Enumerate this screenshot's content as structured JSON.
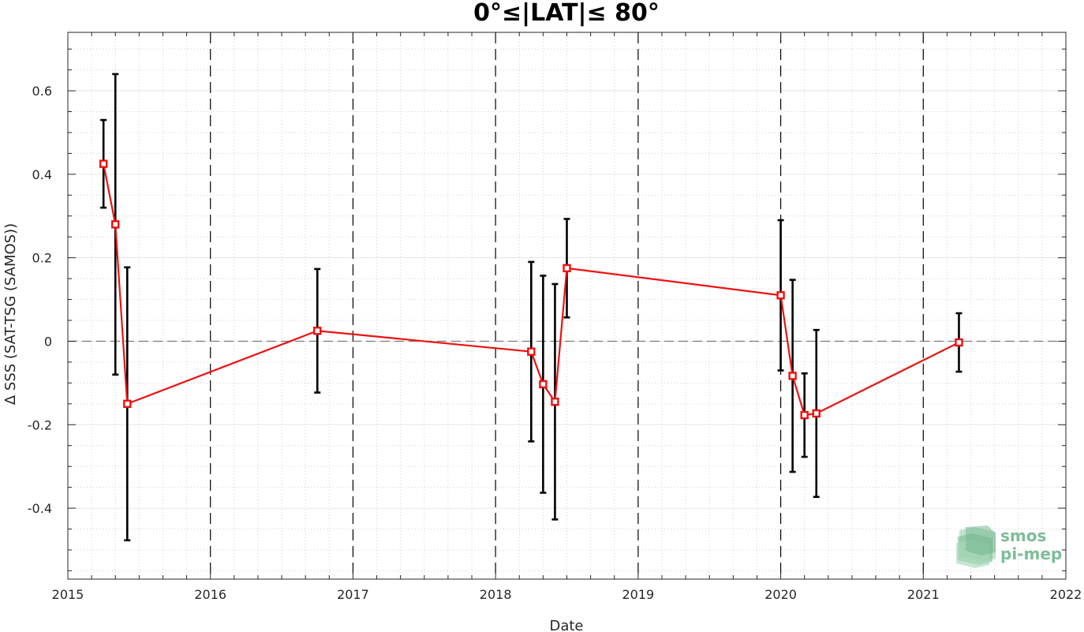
{
  "chart_data": {
    "type": "scatter",
    "title": "0°≤|LAT|≤ 80°",
    "xlabel": "Date",
    "ylabel": "Δ SSS (SAT-TSG (SAMOS))",
    "xlim": [
      2015,
      2022
    ],
    "ylim": [
      -0.57,
      0.74
    ],
    "x_ticks": [
      "2015",
      "2016",
      "2017",
      "2018",
      "2019",
      "2020",
      "2021",
      "2022"
    ],
    "y_ticks": [
      "-0.4",
      "-0.2",
      "0",
      "0.2",
      "0.4",
      "0.6"
    ],
    "grid": true,
    "year_dividers": [
      "2016",
      "2017",
      "2018",
      "2019",
      "2020",
      "2021"
    ],
    "zero_reference_line": 0,
    "series": [
      {
        "color": "#ee1111",
        "marker": "square",
        "points": [
          {
            "x": "2015-04",
            "y": 0.425,
            "err_low": 0.32,
            "err_high": 0.53
          },
          {
            "x": "2015-05",
            "y": 0.28,
            "err_low": -0.08,
            "err_high": 0.64
          },
          {
            "x": "2015-06",
            "y": -0.15,
            "err_low": -0.477,
            "err_high": 0.177
          },
          {
            "x": "2016-10",
            "y": 0.025,
            "err_low": -0.123,
            "err_high": 0.173
          },
          {
            "x": "2018-04",
            "y": -0.025,
            "err_low": -0.24,
            "err_high": 0.19
          },
          {
            "x": "2018-05",
            "y": -0.103,
            "err_low": -0.363,
            "err_high": 0.157
          },
          {
            "x": "2018-06",
            "y": -0.145,
            "err_low": -0.427,
            "err_high": 0.137
          },
          {
            "x": "2018-07",
            "y": 0.175,
            "err_low": 0.057,
            "err_high": 0.293
          },
          {
            "x": "2020-01",
            "y": 0.11,
            "err_low": -0.07,
            "err_high": 0.29
          },
          {
            "x": "2020-02",
            "y": -0.083,
            "err_low": -0.313,
            "err_high": 0.147
          },
          {
            "x": "2020-03",
            "y": -0.177,
            "err_low": -0.277,
            "err_high": -0.077
          },
          {
            "x": "2020-04",
            "y": -0.173,
            "err_low": -0.373,
            "err_high": 0.027
          },
          {
            "x": "2021-04",
            "y": -0.003,
            "err_low": -0.073,
            "err_high": 0.067
          }
        ]
      }
    ]
  },
  "logo": {
    "line1": "smos",
    "line2": "pi-mep",
    "color": "#7dbd98"
  }
}
